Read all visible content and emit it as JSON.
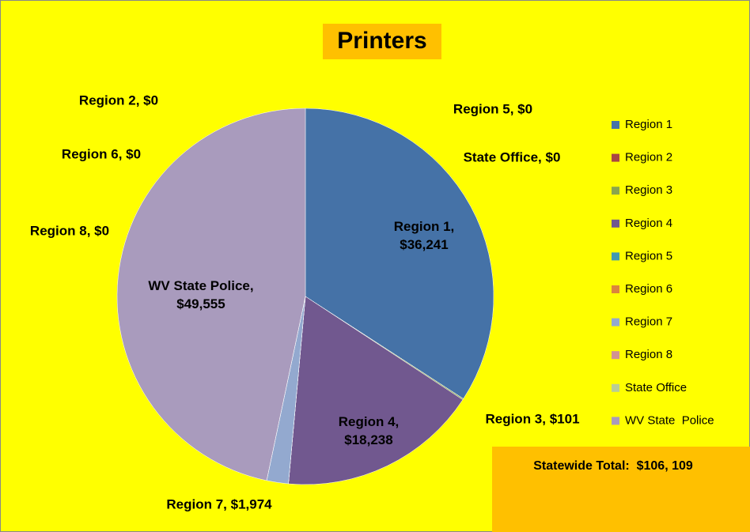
{
  "chart_data": {
    "type": "pie",
    "title": "Printers",
    "categories": [
      "Region 1",
      "Region 2",
      "Region 3",
      "Region 4",
      "Region 5",
      "Region 6",
      "Region 7",
      "Region 8",
      "State Office",
      "WV State  Police"
    ],
    "values": [
      36241,
      0,
      101,
      18238,
      0,
      0,
      1974,
      0,
      0,
      49555
    ],
    "value_labels": [
      "Region 1, $36,241",
      "Region 2, $0",
      "Region 3, $101",
      "Region 4, $18,238",
      "Region 5, $0",
      "Region 6, $0",
      "Region 7, $1,974",
      "Region 8, $0",
      "State Office, $0",
      "WV State Police, $49,555"
    ],
    "colors": [
      "#4572a7",
      "#aa4643",
      "#89a54e",
      "#71588f",
      "#4198af",
      "#db843d",
      "#93a9cf",
      "#d19392",
      "#b9cd96",
      "#a99bbd"
    ],
    "legend": "right",
    "annotation": "Statewide Total:  $106, 109"
  }
}
